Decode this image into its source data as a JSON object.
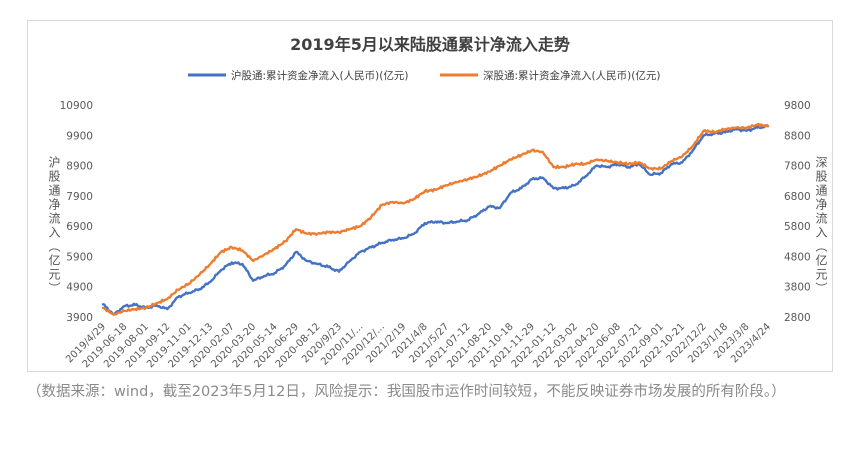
{
  "chart_data": {
    "type": "line",
    "title": "2019年5月以来陆股通累计净流入走势",
    "legend_position": "top",
    "grid": false,
    "y_left": {
      "label": "沪股通净流入（亿元）",
      "ylim": [
        3900,
        10900
      ],
      "ticks": [
        "3900",
        "4900",
        "5900",
        "6900",
        "7900",
        "8900",
        "9900",
        "10900"
      ]
    },
    "y_right": {
      "label": "深股通净流入（亿元）",
      "ylim": [
        2800,
        9800
      ],
      "ticks": [
        "2800",
        "3800",
        "4800",
        "5800",
        "6800",
        "7800",
        "8800",
        "9800"
      ]
    },
    "x_ticks": [
      "2019/4/29",
      "2019-06-18",
      "2019-08-01",
      "2019-09-12",
      "2019-11-01",
      "2019-12-13",
      "2020-02-07",
      "2020-03-20",
      "2020-05-14",
      "2020-06-29",
      "2020-08-12",
      "2020/9/23",
      "2020/11/...",
      "2020/12/...",
      "2021/2/19",
      "2021/4/8",
      "2021/5/27",
      "2021-07-12",
      "2021-08-20",
      "2021-10-18",
      "2021-11-29",
      "2022-01-12",
      "2022-03-02",
      "2022-04-20",
      "2022-06-08",
      "2022-07-21",
      "2022-09-01",
      "2022-10-21",
      "2022/12/2",
      "2023/1/18",
      "2023/3/8",
      "2023/4/24"
    ],
    "series": [
      {
        "name": "沪股通:累计资金净流入(人民币)(亿元)",
        "axis": "left",
        "color": "#4472c4",
        "x": [
          0,
          0.5,
          1,
          1.5,
          2,
          2.5,
          3,
          3.5,
          4,
          4.5,
          5,
          5.5,
          6,
          6.5,
          7,
          7.5,
          8,
          8.5,
          9,
          9.5,
          10,
          10.5,
          11,
          11.5,
          12,
          12.5,
          13,
          13.5,
          14,
          14.5,
          15,
          15.5,
          16,
          16.5,
          17,
          17.5,
          18,
          18.5,
          19,
          19.5,
          20,
          20.5,
          21,
          21.5,
          22,
          22.5,
          23,
          23.5,
          24,
          24.5,
          25,
          25.5,
          26,
          26.5,
          27,
          27.5,
          28,
          28.5,
          29,
          29.5,
          30,
          30.5,
          31
        ],
        "values": [
          4320,
          3980,
          4260,
          4300,
          4200,
          4280,
          4160,
          4560,
          4700,
          4820,
          5060,
          5450,
          5700,
          5650,
          5100,
          5250,
          5350,
          5600,
          6050,
          5750,
          5650,
          5550,
          5400,
          5750,
          6050,
          6200,
          6350,
          6450,
          6500,
          6650,
          7000,
          7050,
          7000,
          7050,
          7100,
          7300,
          7550,
          7500,
          8000,
          8150,
          8450,
          8500,
          8150,
          8150,
          8250,
          8550,
          8900,
          8850,
          8950,
          8850,
          8950,
          8600,
          8650,
          8950,
          9000,
          9400,
          9900,
          9950,
          10000,
          10100,
          10050,
          10150,
          10200
        ]
      },
      {
        "name": "深股通:累计资金净流入(人民币)(亿元)",
        "axis": "right",
        "color": "#ed7d31",
        "x": [
          0,
          0.5,
          1,
          1.5,
          2,
          2.5,
          3,
          3.5,
          4,
          4.5,
          5,
          5.5,
          6,
          6.5,
          7,
          7.5,
          8,
          8.5,
          9,
          9.5,
          10,
          10.5,
          11,
          11.5,
          12,
          12.5,
          13,
          13.5,
          14,
          14.5,
          15,
          15.5,
          16,
          16.5,
          17,
          17.5,
          18,
          18.5,
          19,
          19.5,
          20,
          20.5,
          21,
          21.5,
          22,
          22.5,
          23,
          23.5,
          24,
          24.5,
          25,
          25.5,
          26,
          26.5,
          27,
          27.5,
          28,
          28.5,
          29,
          29.5,
          30,
          30.5,
          31
        ],
        "values": [
          3100,
          2880,
          3000,
          3060,
          3100,
          3250,
          3400,
          3700,
          3900,
          4200,
          4550,
          4950,
          5100,
          5000,
          4650,
          4850,
          5050,
          5300,
          5700,
          5550,
          5550,
          5600,
          5600,
          5700,
          5800,
          6100,
          6500,
          6600,
          6550,
          6700,
          6950,
          7000,
          7150,
          7250,
          7350,
          7450,
          7600,
          7800,
          8000,
          8150,
          8300,
          8250,
          7750,
          7750,
          7850,
          7850,
          8000,
          7950,
          7900,
          7850,
          7900,
          7700,
          7700,
          7950,
          8100,
          8450,
          8950,
          8900,
          9000,
          9050,
          9050,
          9150,
          9100
        ]
      }
    ]
  },
  "caption": "（数据来源：wind，截至2023年5月12日，风险提示：我国股市运作时间较短，不能反映证券市场发展的所有阶段。）"
}
